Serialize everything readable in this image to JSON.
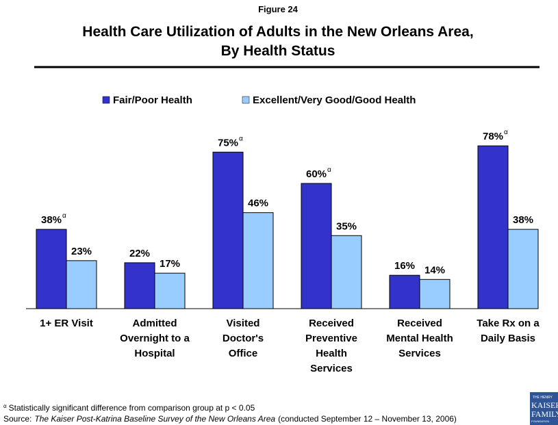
{
  "chart_data": {
    "type": "bar",
    "figure_label": "Figure 24",
    "title": [
      "Health Care Utilization of Adults in the New Orleans Area,",
      "By Health Status"
    ],
    "categories": [
      [
        "1+ ER Visit"
      ],
      [
        "Admitted",
        "Overnight to a",
        "Hospital"
      ],
      [
        "Visited",
        "Doctor's",
        "Office"
      ],
      [
        "Received",
        "Preventive",
        "Health",
        "Services"
      ],
      [
        "Received",
        "Mental Health",
        "Services"
      ],
      [
        "Take Rx on a",
        "Daily Basis"
      ]
    ],
    "series": [
      {
        "name": "Fair/Poor Health",
        "color": "#3333cc",
        "values": [
          38,
          22,
          75,
          60,
          16,
          78
        ],
        "value_labels": [
          "38%",
          "22%",
          "75%",
          "60%",
          "16%",
          "78%"
        ],
        "markers": [
          "α",
          null,
          "α",
          "α",
          null,
          "α"
        ]
      },
      {
        "name": "Excellent/Very Good/Good Health",
        "color": "#99ccff",
        "values": [
          23,
          17,
          46,
          35,
          14,
          38
        ],
        "value_labels": [
          "23%",
          "17%",
          "46%",
          "35%",
          "14%",
          "38%"
        ]
      }
    ],
    "ylim": [
      0,
      100
    ],
    "footnote": {
      "marker": "α",
      "text": "Statistically significant difference from comparison group at p < 0.05"
    },
    "source": {
      "label": "Source:",
      "title": "The Kaiser Post-Katrina Baseline Survey of the New Orleans Area",
      "note": "(conducted September 12 – November 13, 2006)"
    },
    "logo": [
      "THE HENRY",
      "KAISER",
      "FAMILY",
      "FOUNDATION"
    ]
  }
}
